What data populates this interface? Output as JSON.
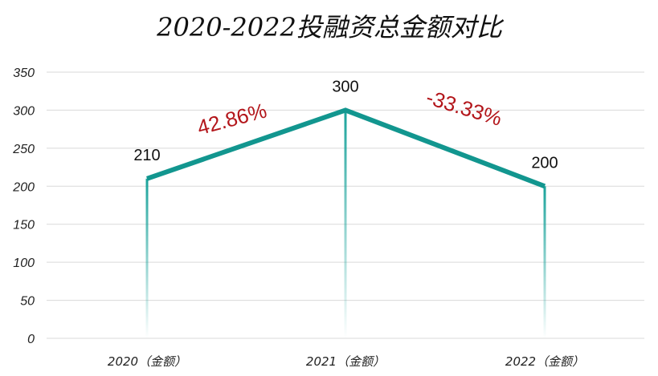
{
  "chart_data": {
    "type": "line",
    "title": "2020-2022投融资总金额对比",
    "categories": [
      "2020（金额）",
      "2021（金额）",
      "2022（金额）"
    ],
    "series": [
      {
        "values": [
          210,
          300,
          200
        ]
      }
    ],
    "data_labels": [
      "210",
      "300",
      "200"
    ],
    "annotations": [
      "42.86%",
      "-33.33%"
    ],
    "yticks": [
      "0",
      "50",
      "100",
      "150",
      "200",
      "250",
      "300",
      "350"
    ],
    "ylim": [
      0,
      350
    ],
    "grid": true,
    "xlabel": "",
    "ylabel": "",
    "colors": {
      "line": "#12968f",
      "drop_top": "#1aa39b",
      "annotation": "#b3161b",
      "grid": "#d9d9d9"
    }
  }
}
